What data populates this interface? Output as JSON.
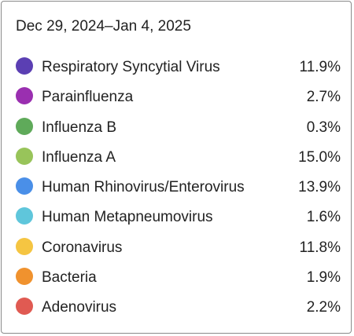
{
  "date_range": "Dec 29, 2024–Jan 4, 2025",
  "items": [
    {
      "label": "Respiratory Syncytial Virus",
      "value": "11.9%",
      "color": "#5b3fb3"
    },
    {
      "label": "Parainfluenza",
      "value": "2.7%",
      "color": "#9a2fb0"
    },
    {
      "label": "Influenza B",
      "value": "0.3%",
      "color": "#5faa5a"
    },
    {
      "label": "Influenza A",
      "value": "15.0%",
      "color": "#98c45a"
    },
    {
      "label": "Human Rhinovirus/Enterovirus",
      "value": "13.9%",
      "color": "#4a8fe8"
    },
    {
      "label": "Human Metapneumovirus",
      "value": "1.6%",
      "color": "#5fc6db"
    },
    {
      "label": "Coronavirus",
      "value": "11.8%",
      "color": "#f5c542"
    },
    {
      "label": "Bacteria",
      "value": "1.9%",
      "color": "#f0922e"
    },
    {
      "label": "Adenovirus",
      "value": "2.2%",
      "color": "#e05a52"
    }
  ]
}
